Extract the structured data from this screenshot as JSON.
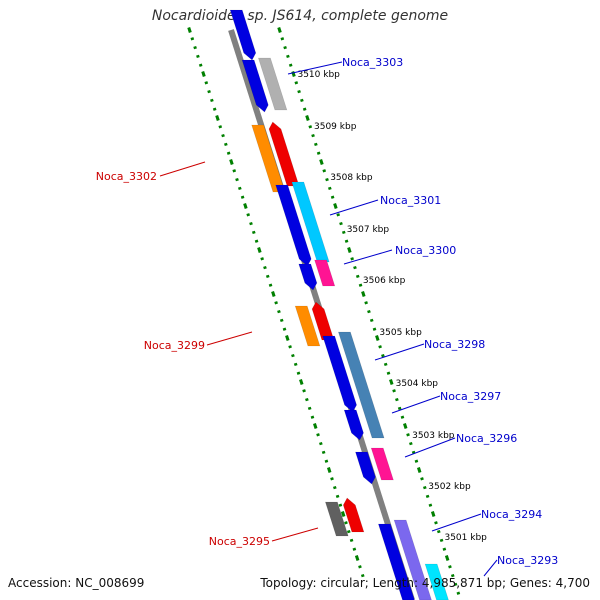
{
  "title": "Nocardioides sp. JS614, complete genome",
  "footer": {
    "accession": "Accession: NC_008699",
    "stats": "Topology: circular; Length: 4,985,871 bp; Genes: 4,700"
  },
  "colors": {
    "backbone": "#808080",
    "ticks": "#008000",
    "forward_label": "#0000cc",
    "reverse_label": "#cc0000"
  },
  "scale_labels": [
    "3510 kbp",
    "3509 kbp",
    "3508 kbp",
    "3507 kbp",
    "3506 kbp",
    "3505 kbp",
    "3504 kbp",
    "3503 kbp",
    "3502 kbp",
    "3501 kbp"
  ],
  "genes": [
    {
      "name": "Noca_3303",
      "strand": "forward",
      "color": "#0000e0"
    },
    {
      "name": "Noca_3302",
      "strand": "reverse",
      "color": "#ff8c00"
    },
    {
      "name": "Noca_3301",
      "strand": "forward",
      "color": "#0000e0"
    },
    {
      "name": "Noca_3300",
      "strand": "forward",
      "color": "#ff1493"
    },
    {
      "name": "Noca_3299",
      "strand": "reverse",
      "color": "#ff8c00"
    },
    {
      "name": "Noca_3298",
      "strand": "forward",
      "color": "#0000e0"
    },
    {
      "name": "Noca_3297",
      "strand": "forward",
      "color": "#0000e0"
    },
    {
      "name": "Noca_3296",
      "strand": "forward",
      "color": "#ff1493"
    },
    {
      "name": "Noca_3295",
      "strand": "reverse",
      "color": "#606060"
    },
    {
      "name": "Noca_3294",
      "strand": "forward",
      "color": "#0000e0"
    },
    {
      "name": "Noca_3293",
      "strand": "forward",
      "color": "#00e5ff"
    }
  ]
}
